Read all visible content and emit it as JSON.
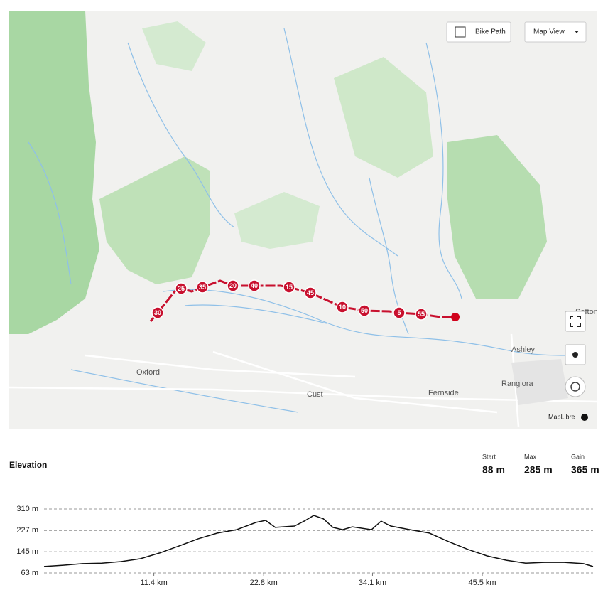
{
  "map": {
    "buttons": {
      "bike_path": "Bike Path",
      "map_view": "Map View"
    },
    "attribution": "MapLibre",
    "places": [
      "Oxford",
      "Cust",
      "Fernside",
      "Rangiora",
      "Ashley",
      "Sefton"
    ],
    "markers": [
      "30",
      "25",
      "35",
      "20",
      "40",
      "15",
      "45",
      "10",
      "50",
      "5",
      "55"
    ]
  },
  "elevation": {
    "title": "Elevation",
    "stats": [
      {
        "label": "Start",
        "value": "88 m"
      },
      {
        "label": "Max",
        "value": "285 m"
      },
      {
        "label": "Gain",
        "value": "365 m"
      }
    ]
  },
  "chart_data": {
    "type": "line",
    "color": "#111111",
    "grid": true,
    "x": [
      0,
      2,
      4,
      6,
      8,
      10,
      12,
      14,
      16,
      18,
      20,
      22,
      23,
      24,
      26,
      27,
      28,
      29,
      30,
      31,
      32,
      34,
      35,
      36,
      38,
      40,
      42,
      44,
      46,
      48,
      50,
      52,
      54,
      56,
      57
    ],
    "values": [
      88,
      93,
      99,
      101,
      107,
      118,
      140,
      167,
      195,
      217,
      230,
      258,
      266,
      239,
      244,
      263,
      285,
      272,
      239,
      230,
      241,
      230,
      263,
      244,
      230,
      217,
      184,
      154,
      129,
      112,
      101,
      104,
      104,
      99,
      88
    ],
    "xlim": [
      0,
      57
    ],
    "ylim": [
      63,
      310
    ],
    "xticks": [
      {
        "value": 11.4,
        "label": "11.4 km"
      },
      {
        "value": 22.8,
        "label": "22.8 km"
      },
      {
        "value": 34.1,
        "label": "34.1 km"
      },
      {
        "value": 45.5,
        "label": "45.5 km"
      }
    ],
    "yticks": [
      {
        "value": 63,
        "label": "63 m"
      },
      {
        "value": 145,
        "label": "145 m"
      },
      {
        "value": 227,
        "label": "227 m"
      },
      {
        "value": 310,
        "label": "310 m"
      }
    ]
  }
}
